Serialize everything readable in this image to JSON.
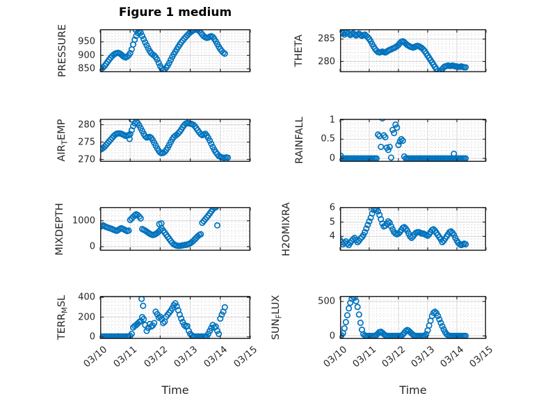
{
  "figure": {
    "title": "Figure 1 medium",
    "xlabel": "Time",
    "marker_color": "#0072BD",
    "axis_color": "#262626",
    "grid_color": "#d5d5d5",
    "minor_grid_color": "#c6c6c6",
    "background": "#ffffff",
    "xticks": [
      0,
      1,
      2,
      3,
      4,
      5
    ],
    "xtick_labels": [
      "03/10",
      "03/11",
      "03/12",
      "03/13",
      "03/14",
      "03/15"
    ]
  },
  "chart_data": [
    {
      "name": "PRESSURE",
      "type": "scatter",
      "ylabel_parts": [
        [
          "PRESSURE",
          false
        ]
      ],
      "ylim": [
        837,
        997
      ],
      "yticks": [
        850,
        900,
        950
      ],
      "ytick_labels": [
        "850",
        "900",
        "950"
      ],
      "y_minor_step": 10,
      "xlim": [
        0,
        5
      ],
      "x_minor_step": 0.125,
      "t0": 0,
      "dt": 0.05,
      "show_xticklabels": false,
      "y": [
        848,
        851,
        855,
        861,
        868,
        876,
        884,
        891,
        897,
        902,
        906,
        908,
        909,
        907,
        903,
        898,
        894,
        892,
        895,
        900,
        908,
        922,
        940,
        958,
        972,
        983,
        990,
        984,
        972,
        960,
        948,
        937,
        926,
        916,
        908,
        903,
        899,
        893,
        884,
        872,
        860,
        851,
        846,
        848,
        854,
        862,
        872,
        883,
        894,
        904,
        913,
        922,
        931,
        940,
        948,
        955,
        962,
        968,
        974,
        980,
        985,
        989,
        993,
        995,
        996,
        994,
        990,
        984,
        977,
        971,
        967,
        965,
        966,
        969,
        971,
        968,
        961,
        952,
        942,
        932,
        923,
        916,
        910,
        906
      ],
      "extra_points": [
        [
          1.18,
          995
        ]
      ]
    },
    {
      "name": "THETA",
      "type": "scatter",
      "ylabel_parts": [
        [
          "THETA",
          false
        ]
      ],
      "ylim": [
        277.6,
        287.2
      ],
      "yticks": [
        280,
        285
      ],
      "ytick_labels": [
        "280",
        "285"
      ],
      "y_minor_step": 1,
      "xlim": [
        0,
        5
      ],
      "x_minor_step": 0.125,
      "t0": 0,
      "dt": 0.05,
      "show_xticklabels": false,
      "y": [
        286.2,
        286.4,
        286.3,
        286.0,
        286.3,
        286.5,
        286.2,
        285.9,
        286.1,
        286.3,
        286.0,
        285.8,
        286.0,
        286.2,
        285.9,
        285.7,
        285.9,
        286.0,
        285.7,
        285.4,
        285.0,
        284.5,
        283.9,
        283.3,
        282.8,
        282.4,
        282.1,
        282.0,
        282.1,
        282.2,
        282.1,
        282.0,
        282.2,
        282.4,
        282.6,
        282.7,
        282.9,
        283.0,
        283.2,
        283.4,
        283.7,
        284.1,
        284.4,
        284.5,
        284.3,
        284.0,
        283.7,
        283.5,
        283.3,
        283.2,
        283.1,
        283.2,
        283.4,
        283.5,
        283.4,
        283.2,
        283.0,
        282.7,
        282.3,
        281.8,
        281.3,
        280.8,
        280.3,
        279.8,
        279.3,
        278.8,
        278.3,
        277.9,
        277.7,
        277.9,
        278.3,
        278.7,
        278.9,
        279.0,
        279.1,
        279.0,
        279.0,
        279.1,
        279.0,
        278.9,
        278.9,
        278.8,
        278.8,
        278.9,
        278.8,
        278.7,
        278.7
      ],
      "extra_points": [
        [
          3.42,
          277.5
        ]
      ]
    },
    {
      "name": "AIR_TEMP",
      "type": "scatter",
      "ylabel_parts": [
        [
          "AIR",
          false
        ],
        [
          "T",
          true
        ],
        [
          "EMP",
          false
        ]
      ],
      "ylim": [
        269.3,
        281.7
      ],
      "yticks": [
        270,
        275,
        280
      ],
      "ytick_labels": [
        "270",
        "275",
        "280"
      ],
      "y_minor_step": 1,
      "xlim": [
        0,
        5
      ],
      "x_minor_step": 0.125,
      "t0": 0,
      "dt": 0.05,
      "show_xticklabels": false,
      "y": [
        272.8,
        273.0,
        273.3,
        273.7,
        274.2,
        274.7,
        275.2,
        275.7,
        276.2,
        276.7,
        277.1,
        277.4,
        277.5,
        277.5,
        277.4,
        277.2,
        277.0,
        276.8,
        276.9,
        277.0,
        277.3,
        278.4,
        279.6,
        280.4,
        280.8,
        280.5,
        279.8,
        279.0,
        278.2,
        277.4,
        276.7,
        276.3,
        276.4,
        276.5,
        276.2,
        275.6,
        274.8,
        274.0,
        273.2,
        272.5,
        272.0,
        271.8,
        271.9,
        272.2,
        272.7,
        273.4,
        274.2,
        275.0,
        275.8,
        276.4,
        276.8,
        277.1,
        277.5,
        278.0,
        278.6,
        279.3,
        279.9,
        280.3,
        280.5,
        280.4,
        280.3,
        280.2,
        280.0,
        279.6,
        279.0,
        278.4,
        277.8,
        277.3,
        277.0,
        277.2,
        277.4,
        276.9,
        276.2,
        275.4,
        274.5,
        273.6,
        272.8,
        272.1,
        271.5,
        271.0,
        270.8,
        270.6,
        270.5,
        270.5,
        270.6,
        270.5
      ],
      "extra_points": [
        [
          1.05,
          281.5
        ],
        [
          0.98,
          275.9
        ]
      ]
    },
    {
      "name": "RAINFALL",
      "type": "scatter",
      "ylabel_parts": [
        [
          "RAINFALL",
          false
        ]
      ],
      "ylim": [
        -0.09,
        1.03
      ],
      "yticks": [
        0,
        0.5,
        1
      ],
      "ytick_labels": [
        "0",
        "0.5",
        "1"
      ],
      "y_minor_step": 0.1,
      "xlim": [
        0,
        5
      ],
      "x_minor_step": 0.125,
      "t0": 0,
      "dt": 0.05,
      "show_xticklabels": false,
      "y": [
        0,
        0,
        0,
        0,
        0,
        0,
        0,
        0,
        0,
        0,
        0,
        0,
        0,
        0,
        0,
        0,
        0,
        0,
        0,
        0,
        0,
        0,
        0,
        0,
        0,
        0,
        0.62,
        0.58,
        0.3,
        1.04,
        0.6,
        0.55,
        0.28,
        0.22,
        0.3,
        0.02,
        0.74,
        0.66,
        0.88,
        0.8,
        0.35,
        0.44,
        0.5,
        0.46,
        0.05,
        0,
        0,
        0,
        0,
        0,
        0,
        0,
        0,
        0,
        0,
        0,
        0,
        0,
        0,
        0,
        0,
        0,
        0,
        0,
        0,
        0,
        0,
        0,
        0,
        0,
        0,
        0,
        0,
        0,
        0,
        0,
        0,
        0,
        0,
        0,
        0,
        0,
        0,
        0,
        0,
        0,
        0
      ],
      "extra_points": [
        [
          0.02,
          0.07
        ],
        [
          3.9,
          0.12
        ]
      ]
    },
    {
      "name": "MIXDEPTH",
      "type": "scatter",
      "ylabel_parts": [
        [
          "MIXDEPTH",
          false
        ]
      ],
      "ylim": [
        -160,
        1530
      ],
      "yticks": [
        0,
        1000
      ],
      "ytick_labels": [
        "0",
        "1000"
      ],
      "y_minor_step": 200,
      "xlim": [
        0,
        5
      ],
      "x_minor_step": 0.125,
      "t0": 0,
      "dt": 0.05,
      "show_xticklabels": false,
      "y": [
        760,
        800,
        820,
        790,
        760,
        740,
        720,
        700,
        680,
        650,
        630,
        610,
        640,
        680,
        710,
        690,
        660,
        630,
        600,
        620,
        1030,
        1090,
        1150,
        1210,
        1250,
        1220,
        1160,
        1090,
        680,
        650,
        620,
        580,
        540,
        500,
        470,
        450,
        460,
        490,
        530,
        580,
        640,
        700,
        620,
        540,
        460,
        380,
        300,
        220,
        150,
        90,
        60,
        40,
        30,
        30,
        40,
        50,
        60,
        70,
        80,
        100,
        130,
        170,
        220,
        280,
        340,
        400,
        450,
        480,
        920,
        990,
        1060,
        1130,
        1200,
        1280,
        1360,
        1440,
        1500,
        1520,
        820
      ],
      "extra_points": [
        [
          1.97,
          870
        ],
        [
          2.04,
          900
        ]
      ]
    },
    {
      "name": "H2OMIXRA",
      "type": "scatter",
      "ylabel_parts": [
        [
          "H2OMIXRA",
          false
        ]
      ],
      "ylim": [
        3.0,
        6.05
      ],
      "yticks": [
        4,
        5,
        6
      ],
      "ytick_labels": [
        "4",
        "5",
        "6"
      ],
      "y_minor_step": 0.2,
      "xlim": [
        0,
        5
      ],
      "x_minor_step": 0.125,
      "t0": 0,
      "dt": 0.05,
      "show_xticklabels": false,
      "y": [
        3.75,
        3.6,
        3.45,
        3.55,
        3.65,
        3.5,
        3.4,
        3.55,
        3.7,
        3.8,
        3.9,
        3.75,
        3.6,
        3.7,
        3.85,
        3.95,
        4.1,
        4.3,
        4.55,
        4.8,
        5.05,
        5.3,
        5.6,
        5.85,
        5.95,
        5.9,
        5.75,
        5.5,
        5.2,
        4.9,
        4.7,
        4.75,
        4.9,
        5.05,
        4.95,
        4.7,
        4.5,
        4.3,
        4.2,
        4.15,
        4.2,
        4.3,
        4.45,
        4.6,
        4.65,
        4.55,
        4.4,
        4.2,
        4.0,
        3.9,
        4.0,
        4.15,
        4.25,
        4.3,
        4.3,
        4.25,
        4.2,
        4.2,
        4.15,
        4.1,
        4.05,
        4.15,
        4.3,
        4.45,
        4.5,
        4.4,
        4.25,
        4.1,
        3.95,
        3.8,
        3.6,
        3.7,
        3.85,
        4.0,
        4.15,
        4.3,
        4.35,
        4.25,
        4.1,
        3.9,
        3.7,
        3.55,
        3.45,
        3.4,
        3.45,
        3.5,
        3.45
      ],
      "extra_points": []
    },
    {
      "name": "TERR_MSL",
      "type": "scatter",
      "ylabel_parts": [
        [
          "TERR",
          false
        ],
        [
          "M",
          true
        ],
        [
          "SL",
          false
        ]
      ],
      "ylim": [
        -22,
        415
      ],
      "yticks": [
        0,
        200,
        400
      ],
      "ytick_labels": [
        "0",
        "200",
        "400"
      ],
      "y_minor_step": 40,
      "xlim": [
        0,
        5
      ],
      "x_minor_step": 0.125,
      "t0": 0,
      "dt": 0.05,
      "show_xticklabels": true,
      "y": [
        2,
        3,
        2,
        4,
        3,
        2,
        3,
        4,
        2,
        3,
        2,
        3,
        4,
        3,
        2,
        3,
        2,
        4,
        3,
        5,
        10,
        30,
        95,
        110,
        120,
        135,
        150,
        160,
        200,
        180,
        120,
        60,
        90,
        130,
        105,
        115,
        140,
        255,
        230,
        195,
        205,
        180,
        140,
        155,
        205,
        225,
        245,
        265,
        290,
        320,
        340,
        310,
        270,
        225,
        185,
        150,
        120,
        105,
        110,
        60,
        30,
        15,
        5,
        3,
        2,
        3,
        2,
        3,
        2,
        3,
        2,
        3,
        30,
        60,
        90,
        120,
        95,
        105,
        60,
        30,
        185,
        225,
        255,
        300
      ],
      "extra_points": [
        [
          1.38,
          385
        ],
        [
          1.43,
          315
        ]
      ]
    },
    {
      "name": "SUN_FLUX",
      "type": "scatter",
      "ylabel_parts": [
        [
          "SUN",
          false
        ],
        [
          "F",
          true
        ],
        [
          "LUX",
          false
        ]
      ],
      "ylim": [
        -45,
        580
      ],
      "yticks": [
        0,
        500
      ],
      "ytick_labels": [
        "0",
        "500"
      ],
      "y_minor_step": 100,
      "xlim": [
        0,
        5
      ],
      "x_minor_step": 0.125,
      "t0": 0,
      "dt": 0.05,
      "show_xticklabels": true,
      "y": [
        0,
        10,
        40,
        110,
        200,
        300,
        400,
        480,
        540,
        570,
        555,
        505,
        420,
        310,
        190,
        90,
        25,
        5,
        0,
        0,
        0,
        0,
        0,
        0,
        0,
        15,
        35,
        55,
        60,
        45,
        25,
        10,
        0,
        0,
        0,
        0,
        0,
        0,
        0,
        0,
        0,
        0,
        0,
        20,
        45,
        70,
        85,
        75,
        55,
        35,
        15,
        5,
        0,
        0,
        0,
        0,
        0,
        0,
        0,
        25,
        80,
        150,
        220,
        290,
        335,
        350,
        330,
        290,
        240,
        190,
        140,
        95,
        55,
        25,
        10,
        0,
        0,
        0,
        0,
        0,
        0,
        0,
        0,
        0,
        0,
        0,
        0
      ],
      "extra_points": []
    }
  ]
}
